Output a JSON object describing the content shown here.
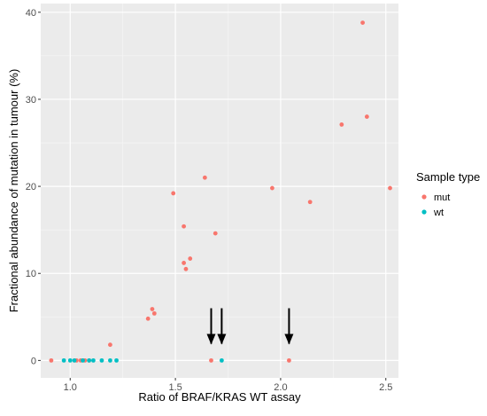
{
  "chart_data": {
    "type": "scatter",
    "xlabel": "Ratio of BRAF/KRAS WT assay",
    "ylabel": "Fractional abundance of mutation in tumour (%)",
    "xlim": [
      0.86,
      2.56
    ],
    "ylim": [
      -2,
      41
    ],
    "x_ticks": [
      1.0,
      1.5,
      2.0,
      2.5
    ],
    "x_tick_labels": [
      "1.0",
      "1.5",
      "2.0",
      "2.5"
    ],
    "y_ticks": [
      0,
      10,
      20,
      30,
      40
    ],
    "y_tick_labels": [
      "0",
      "10",
      "20",
      "30",
      "40"
    ],
    "grid": true,
    "background": "#ebebeb",
    "legend": {
      "title": "Sample type",
      "placement": "right",
      "entries": [
        {
          "label": "mut",
          "color": "#f8766d"
        },
        {
          "label": "wt",
          "color": "#00bfc4"
        }
      ]
    },
    "series": [
      {
        "name": "mut",
        "color": "#f8766d",
        "points": [
          [
            0.91,
            0
          ],
          [
            1.03,
            0
          ],
          [
            1.05,
            0
          ],
          [
            1.07,
            0
          ],
          [
            1.09,
            0
          ],
          [
            1.19,
            1.8
          ],
          [
            1.37,
            4.8
          ],
          [
            1.39,
            5.9
          ],
          [
            1.4,
            5.4
          ],
          [
            1.49,
            19.2
          ],
          [
            1.54,
            15.4
          ],
          [
            1.54,
            11.2
          ],
          [
            1.55,
            10.5
          ],
          [
            1.57,
            11.7
          ],
          [
            1.64,
            21.0
          ],
          [
            1.67,
            0
          ],
          [
            1.69,
            14.6
          ],
          [
            1.96,
            19.8
          ],
          [
            2.04,
            0
          ],
          [
            2.14,
            18.2
          ],
          [
            2.29,
            27.1
          ],
          [
            2.39,
            38.8
          ],
          [
            2.41,
            28.0
          ],
          [
            2.52,
            19.8
          ]
        ]
      },
      {
        "name": "wt",
        "color": "#00bfc4",
        "points": [
          [
            0.97,
            0
          ],
          [
            1.0,
            0
          ],
          [
            1.02,
            0
          ],
          [
            1.06,
            0
          ],
          [
            1.09,
            0
          ],
          [
            1.11,
            0
          ],
          [
            1.15,
            0
          ],
          [
            1.19,
            0
          ],
          [
            1.22,
            0
          ],
          [
            1.72,
            0
          ]
        ]
      }
    ],
    "annotations": [
      {
        "type": "arrow",
        "x": 1.67,
        "y_from": 6.0,
        "y_to": 0.8
      },
      {
        "type": "arrow",
        "x": 1.72,
        "y_from": 6.0,
        "y_to": 0.8
      },
      {
        "type": "arrow",
        "x": 2.04,
        "y_from": 6.0,
        "y_to": 0.8
      }
    ]
  }
}
